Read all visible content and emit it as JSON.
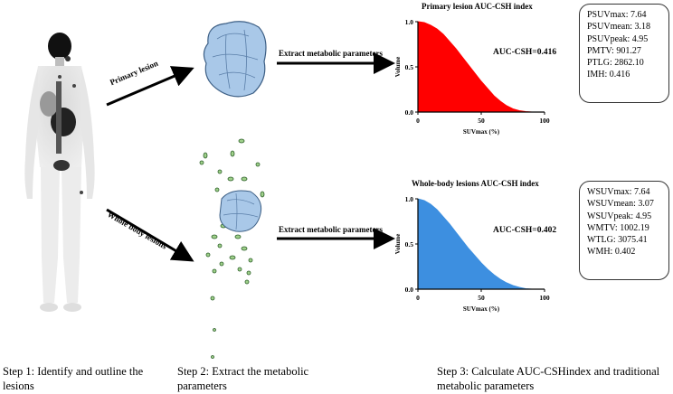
{
  "steps": {
    "step1": "Step 1: Identify and outline the lesions",
    "step2": "Step 2: Extract the metabolic parameters",
    "step3": "Step 3: Calculate AUC-CSHindex and traditional metabolic parameters"
  },
  "arrows": {
    "primary": "Primary lesion",
    "whole_body": "Whole body lesions",
    "extract_top": "Extract metabolic parameters",
    "extract_bottom": "Extract metabolic parameters"
  },
  "charts": {
    "top": {
      "title": "Primary lesion AUC-CSH index",
      "auc_text": "AUC-CSH=0.416",
      "color": "#ff0000"
    },
    "bottom": {
      "title": "Whole-body lesions AUC-CSH index",
      "auc_text": "AUC-CSH=0.402",
      "color": "#3d8fe0"
    }
  },
  "params": {
    "primary": [
      "PSUVmax: 7.64",
      "PSUVmean: 3.18",
      "PSUVpeak: 4.95",
      "PMTV: 901.27",
      "PTLG: 2862.10",
      "IMH: 0.416"
    ],
    "whole_body": [
      "WSUVmax: 7.64",
      "WSUVmean: 3.07",
      "WSUVpeak: 4.95",
      "WMTV: 1002.19",
      "WTLG: 3075.41",
      "WMH: 0.402"
    ]
  },
  "chart_data": [
    {
      "type": "area",
      "title": "Primary lesion AUC-CSH index",
      "xlabel": "SUVmax (%)",
      "ylabel": "Volume",
      "xlim": [
        0,
        100
      ],
      "ylim": [
        0,
        1.0
      ],
      "x_ticks": [
        "0",
        "50",
        "100"
      ],
      "y_ticks": [
        "0.0",
        "0.5",
        "1.0"
      ],
      "x": [
        0,
        5,
        10,
        15,
        20,
        25,
        30,
        35,
        40,
        45,
        50,
        55,
        60,
        65,
        70,
        75,
        80,
        85,
        90
      ],
      "y": [
        1.0,
        0.99,
        0.96,
        0.92,
        0.86,
        0.78,
        0.7,
        0.61,
        0.52,
        0.43,
        0.34,
        0.26,
        0.18,
        0.12,
        0.07,
        0.035,
        0.015,
        0.005,
        0.0
      ],
      "annotation": "AUC-CSH=0.416"
    },
    {
      "type": "area",
      "title": "Whole-body lesions AUC-CSH index",
      "xlabel": "SUVmax (%)",
      "ylabel": "Volume",
      "xlim": [
        0,
        100
      ],
      "ylim": [
        0,
        1.0
      ],
      "x_ticks": [
        "0",
        "50",
        "100"
      ],
      "y_ticks": [
        "0.0",
        "0.5",
        "1.0"
      ],
      "x": [
        0,
        5,
        10,
        15,
        20,
        25,
        30,
        35,
        40,
        45,
        50,
        55,
        60,
        65,
        70,
        75,
        80,
        85,
        90
      ],
      "y": [
        1.0,
        0.98,
        0.94,
        0.88,
        0.8,
        0.72,
        0.63,
        0.54,
        0.45,
        0.37,
        0.29,
        0.22,
        0.16,
        0.11,
        0.07,
        0.04,
        0.02,
        0.005,
        0.0
      ],
      "annotation": "AUC-CSH=0.402"
    }
  ]
}
